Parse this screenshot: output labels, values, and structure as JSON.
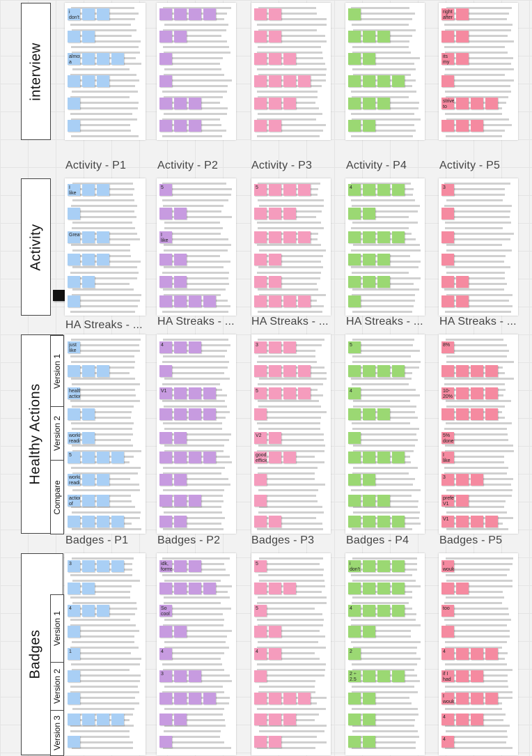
{
  "sections": [
    {
      "name": "interview",
      "title": "interview"
    },
    {
      "name": "activity",
      "title": "Activity"
    },
    {
      "name": "healthy-actions",
      "title": "Healthy Actions",
      "versions": [
        "Version 1",
        "Version 2",
        "Compare"
      ]
    },
    {
      "name": "badges",
      "title": "Badges",
      "versions": [
        "Version 1",
        "Version 2",
        "Version 3"
      ]
    }
  ],
  "row_labels": [
    [
      "Activity - P1",
      "Activity - P2",
      "Activity - P3",
      "Activity - P4",
      "Activity - P5"
    ],
    [
      "HA Streaks - ...",
      "HA Streaks - ...",
      "HA Streaks - ...",
      "HA Streaks - ...",
      "HA Streaks - ..."
    ],
    [
      "Badges - P1",
      "Badges - P2",
      "Badges - P3",
      "Badges - P4",
      "Badges - P5"
    ]
  ],
  "participant_colors": [
    "#a9cff5",
    "#c79be0",
    "#f59cbd",
    "#9bd873",
    "#f58aa0"
  ],
  "big_stickies": {
    "r0c0": [
      "i don't forget",
      "almost a year"
    ],
    "r0c4": [
      "right after dk",
      "its my routine",
      "strive to be fit"
    ],
    "r1c0": [
      "I like that",
      "Great"
    ],
    "r1c1": [
      "5",
      "I like that"
    ],
    "r1c2": [
      "5"
    ],
    "r1c3": [
      "4"
    ],
    "r1c4": [
      "3"
    ],
    "r2c0": [
      "just like actions",
      "healthy actions",
      "working reading",
      "5",
      "working reading",
      "actions of interest"
    ],
    "r2c1": [
      "4",
      "V1"
    ],
    "r2c2": [
      "3",
      "5",
      "V2",
      "good efficient"
    ],
    "r2c3": [
      "5",
      "4"
    ],
    "r2c4": [
      "8%",
      "10-20% interest",
      "5% done",
      "I like it",
      "3",
      "prefers V1",
      "V1"
    ],
    "r3c0": [
      "3",
      "4",
      "1"
    ],
    "r3c1": [
      "idk, forms",
      "So cool badges",
      "4",
      "3"
    ],
    "r3c2": [
      "5",
      "5",
      "4"
    ],
    "r3c3": [
      "i don't know",
      "4",
      "2",
      "2 ÷ 2.5"
    ],
    "r3c4": [
      "I would",
      "too",
      "4",
      "if I had",
      "I would feel",
      "4",
      "4"
    ]
  }
}
